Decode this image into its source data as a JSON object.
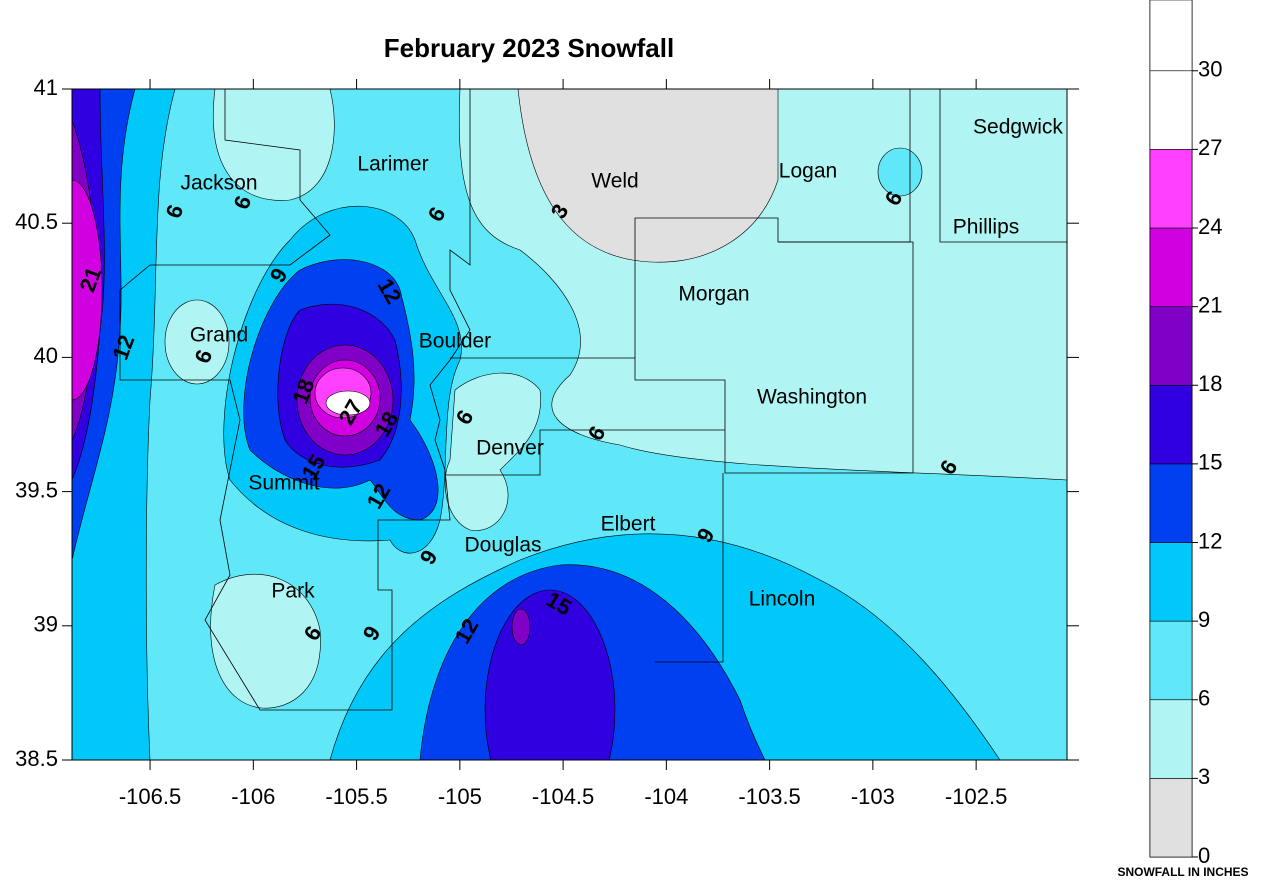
{
  "title": "February 2023 Snowfall",
  "x_axis": {
    "lim": [
      -106.878,
      -102.06
    ],
    "ticks": [
      -106.5,
      -106,
      -105.5,
      -105,
      -104.5,
      -104,
      -103.5,
      -103,
      -102.5
    ]
  },
  "y_axis": {
    "lim": [
      38.5,
      41
    ],
    "ticks": [
      38.5,
      39,
      39.5,
      40,
      40.5,
      41
    ]
  },
  "counties": [
    "Sedgwick",
    "Larimer",
    "Logan",
    "Jackson",
    "Weld",
    "Phillips",
    "Morgan",
    "Grand",
    "Boulder",
    "Washington",
    "Denver",
    "Summit",
    "Elbert",
    "Douglas",
    "Park",
    "Lincoln"
  ],
  "contour_labels": [
    6,
    6,
    6,
    3,
    6,
    9,
    12,
    21,
    12,
    6,
    18,
    27,
    18,
    6,
    6,
    6,
    15,
    12,
    9,
    9,
    15,
    12,
    6,
    9
  ],
  "colorbar": {
    "lim": [
      0,
      32.7
    ],
    "ticks": [
      0,
      3,
      6,
      9,
      12,
      15,
      18,
      21,
      24,
      27,
      30
    ],
    "colors": [
      "#e0e0e0",
      "#b0f4f4",
      "#60e8f8",
      "#00c8f8",
      "#0040f0",
      "#3000e0",
      "#8000c8",
      "#d000e0",
      "#ff40ff",
      "#ffffff",
      "#ffffff"
    ],
    "label": "SNOWFALL IN INCHES"
  }
}
